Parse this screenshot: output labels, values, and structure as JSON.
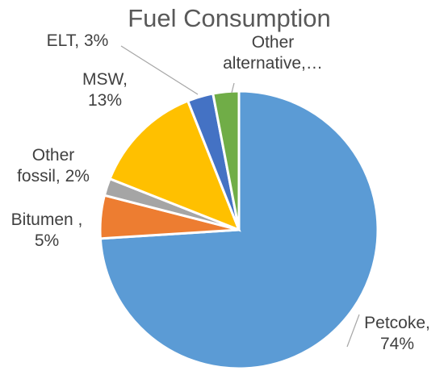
{
  "chart_data": {
    "type": "pie",
    "title": "Fuel Consumption",
    "start_angle_deg": 0,
    "direction": "clockwise",
    "slices": [
      {
        "label": "Petcoke",
        "percent": 74,
        "label_text": [
          "Petcoke,",
          "74%"
        ],
        "color": "#5b9bd5"
      },
      {
        "label": "Bitumen",
        "percent": 5,
        "label_text": [
          "Bitumen ,",
          "5%"
        ],
        "color": "#ed7d31"
      },
      {
        "label": "Other fossil",
        "percent": 2,
        "label_text": [
          "Other",
          "fossil, 2%"
        ],
        "color": "#a5a5a5"
      },
      {
        "label": "MSW",
        "percent": 13,
        "label_text": [
          "MSW,",
          "13%"
        ],
        "color": "#ffc000"
      },
      {
        "label": "ELT",
        "percent": 3,
        "label_text": [
          "ELT, 3%"
        ],
        "color": "#4472c4"
      },
      {
        "label": "Other alternative",
        "percent": 3,
        "label_text": [
          "Other",
          "alternative,…"
        ],
        "color": "#70ad47"
      }
    ]
  }
}
